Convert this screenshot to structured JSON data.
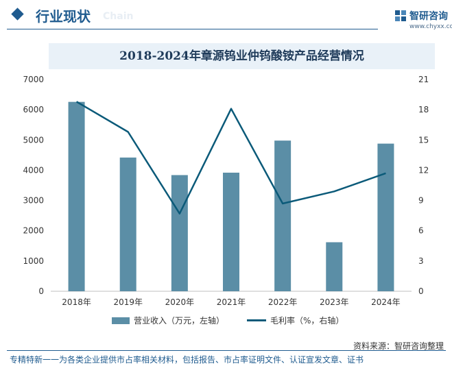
{
  "header": {
    "title": "行业现状",
    "ghost_text": "Chain"
  },
  "brand": {
    "name": "智研咨询",
    "url": "www.chyxx.com"
  },
  "chart_data": {
    "type": "bar",
    "title": "2018-2024年章源钨业仲钨酸铵产品经营情况",
    "categories": [
      "2018年",
      "2019年",
      "2020年",
      "2021年",
      "2022年",
      "2023年",
      "2024年"
    ],
    "series": [
      {
        "name": "营业收入（万元，左轴）",
        "type": "bar",
        "axis": "left",
        "values": [
          6260,
          4420,
          3840,
          3920,
          4980,
          1620,
          4880
        ]
      },
      {
        "name": "毛利率（%，右轴）",
        "type": "line",
        "axis": "right",
        "values": [
          18.8,
          15.8,
          7.7,
          18.1,
          8.7,
          9.9,
          11.7
        ]
      }
    ],
    "y_left": {
      "min": 0,
      "max": 7000,
      "step": 1000
    },
    "y_right": {
      "min": 0,
      "max": 21,
      "step": 3
    },
    "grid": false,
    "legend": "bottom",
    "colors": {
      "bar": "#5b8ea6",
      "line": "#0b5a79"
    }
  },
  "source": "资料来源：智研咨询整理",
  "footer": "专精特新一一为各类企业提供市占率相关材料，包括报告、市占率证明文件、认证宣发文章、证书"
}
